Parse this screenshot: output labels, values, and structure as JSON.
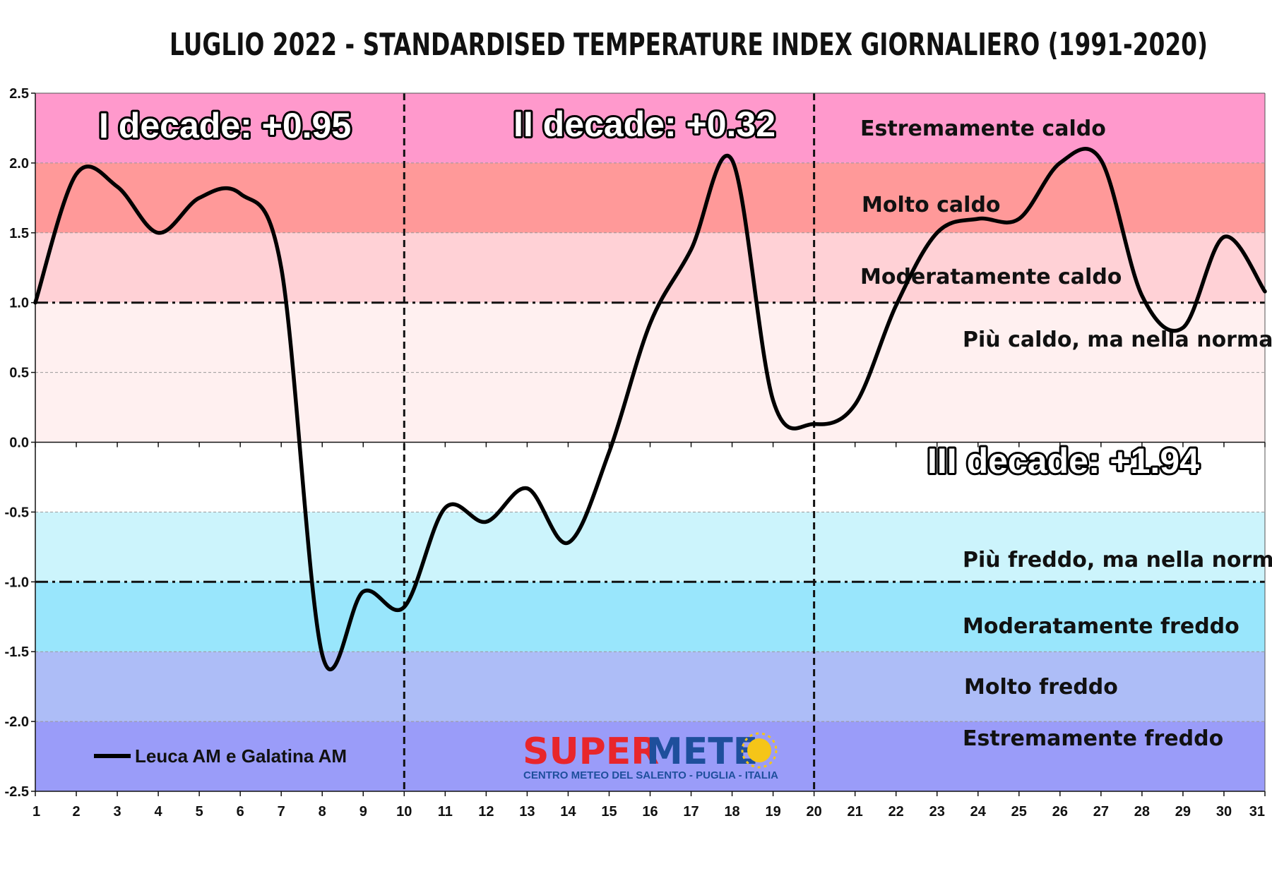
{
  "chart_data": {
    "type": "line",
    "title": "LUGLIO 2022 - STANDARDISED TEMPERATURE INDEX GIORNALIERO (1991-2020)",
    "xlabel": "",
    "ylabel": "",
    "xlim": [
      1,
      31
    ],
    "ylim": [
      -2.5,
      2.5
    ],
    "x_ticks": [
      "1",
      "2",
      "3",
      "4",
      "5",
      "6",
      "7",
      "8",
      "9",
      "10",
      "11",
      "12",
      "13",
      "14",
      "15",
      "16",
      "17",
      "18",
      "19",
      "20",
      "21",
      "22",
      "23",
      "24",
      "25",
      "26",
      "27",
      "28",
      "29",
      "30",
      "31"
    ],
    "y_ticks": [
      "2.5",
      "2.0",
      "1.5",
      "1.0",
      "0.5",
      "0.0",
      "-0.5",
      "-1.0",
      "-1.5",
      "-2.0",
      "-2.5"
    ],
    "grid": "horizontal dashed at 0.5 steps",
    "legend_position": "bottom-left",
    "series": [
      {
        "name": "Leuca AM e Galatina AM",
        "color": "#000000",
        "x": [
          1,
          2,
          3,
          4,
          5,
          6,
          7,
          8,
          9,
          10,
          11,
          12,
          13,
          14,
          15,
          16,
          17,
          18,
          19,
          20,
          21,
          22,
          23,
          24,
          25,
          26,
          27,
          28,
          29,
          30,
          31
        ],
        "values": [
          1.0,
          1.92,
          1.83,
          1.5,
          1.75,
          1.78,
          1.25,
          -1.52,
          -1.07,
          -1.18,
          -0.47,
          -0.57,
          -0.33,
          -0.72,
          -0.07,
          0.85,
          1.38,
          2.02,
          0.3,
          0.13,
          0.27,
          0.98,
          1.5,
          1.6,
          1.6,
          2.0,
          2.02,
          1.05,
          0.82,
          1.47,
          1.08
        ]
      }
    ],
    "bands": [
      {
        "from": 2.0,
        "to": 2.5,
        "label": "Estremamente caldo",
        "color": "#ff99cc"
      },
      {
        "from": 1.5,
        "to": 2.0,
        "label": "Molto caldo",
        "color": "#ff9999"
      },
      {
        "from": 1.0,
        "to": 1.5,
        "label": "Moderatamente caldo",
        "color": "#ffd1d6"
      },
      {
        "from": 0.0,
        "to": 1.0,
        "label": "Più caldo, ma nella norma",
        "color": "#fff0f0"
      },
      {
        "from": -1.0,
        "to": -0.5,
        "label": "Più freddo, ma nella norma",
        "color": "#ccf4fc"
      },
      {
        "from": -1.5,
        "to": -1.0,
        "label": "Moderatamente freddo",
        "color": "#99e6fc"
      },
      {
        "from": -2.0,
        "to": -1.5,
        "label": "Molto freddo",
        "color": "#adbdf7"
      },
      {
        "from": -2.5,
        "to": -2.0,
        "label": "Estremamente freddo",
        "color": "#9a9cf9"
      }
    ],
    "decade_dividers": [
      10,
      20
    ],
    "threshold_lines": [
      1.0,
      -1.0
    ],
    "annotations": [
      {
        "text": "I decade: +0.95"
      },
      {
        "text": "II decade: +0.32"
      },
      {
        "text": "III decade: +1.94"
      }
    ]
  },
  "logo": {
    "brand_super": "SUPER",
    "brand_meteo": "METE",
    "tagline": "CENTRO METEO DEL SALENTO - PUGLIA - ITALIA",
    "color_super": "#e8262b",
    "color_meteo": "#1e4f9c",
    "sun_color": "#f5c518"
  }
}
